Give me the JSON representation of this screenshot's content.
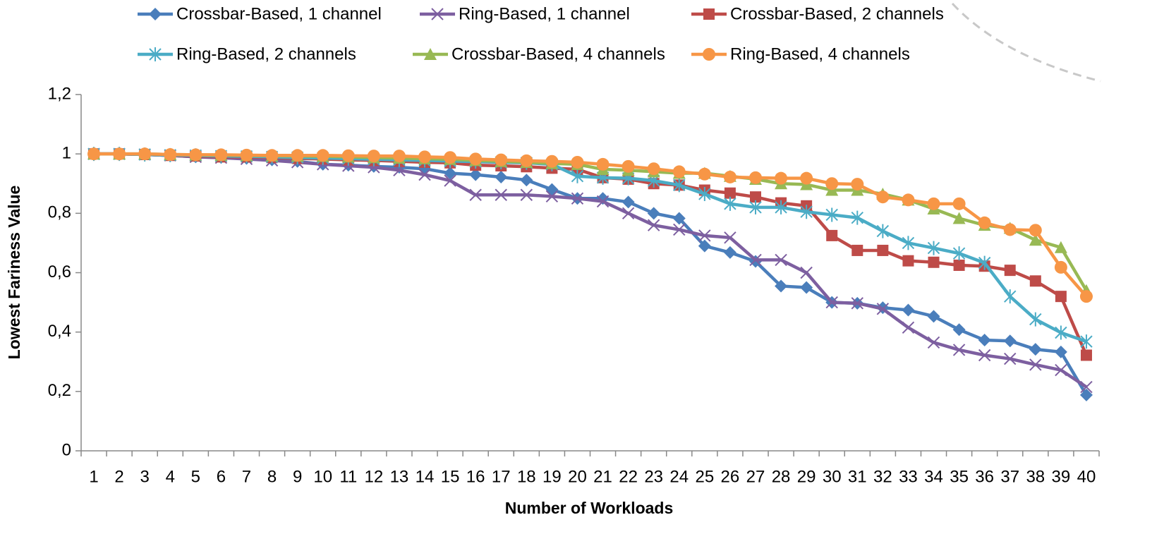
{
  "chart_data": {
    "type": "line",
    "x_label": "Number of Workloads",
    "y_label": "Lowest Fariness Value",
    "categories": [
      "1",
      "2",
      "3",
      "4",
      "5",
      "6",
      "7",
      "8",
      "9",
      "10",
      "11",
      "12",
      "13",
      "14",
      "15",
      "16",
      "17",
      "18",
      "19",
      "20",
      "21",
      "22",
      "23",
      "24",
      "25",
      "26",
      "27",
      "28",
      "29",
      "30",
      "31",
      "32",
      "33",
      "34",
      "35",
      "36",
      "37",
      "38",
      "39",
      "40"
    ],
    "ylim": [
      0,
      1.2
    ],
    "yticks": [
      0,
      {
        "value": 0.2,
        "label": "0,2"
      },
      {
        "value": 0.4,
        "label": "0,4"
      },
      {
        "value": 0.6,
        "label": "0,6"
      },
      {
        "value": 0.8,
        "label": "0,8"
      },
      1,
      {
        "value": 1.2,
        "label": "1,2"
      }
    ],
    "grid": false,
    "legend": "top",
    "series": [
      {
        "name": "Crossbar-Based, 1 channel",
        "color": "#4a7ebb",
        "marker": "diamond",
        "values": [
          1,
          1,
          0.998,
          0.995,
          0.99,
          0.988,
          0.985,
          0.98,
          0.975,
          0.965,
          0.962,
          0.958,
          0.955,
          0.95,
          0.935,
          0.93,
          0.922,
          0.912,
          0.88,
          0.85,
          0.85,
          0.838,
          0.8,
          0.783,
          0.69,
          0.668,
          0.638,
          0.555,
          0.55,
          0.5,
          0.497,
          0.482,
          0.474,
          0.453,
          0.408,
          0.373,
          0.37,
          0.342,
          0.333,
          0.188
        ]
      },
      {
        "name": "Ring-Based, 1 channel",
        "color": "#7d5fa0",
        "marker": "x",
        "values": [
          1,
          1,
          0.998,
          0.995,
          0.99,
          0.987,
          0.983,
          0.978,
          0.972,
          0.965,
          0.96,
          0.955,
          0.945,
          0.93,
          0.91,
          0.862,
          0.862,
          0.862,
          0.857,
          0.85,
          0.84,
          0.8,
          0.76,
          0.745,
          0.725,
          0.718,
          0.643,
          0.643,
          0.6,
          0.5,
          0.497,
          0.478,
          0.415,
          0.365,
          0.34,
          0.322,
          0.31,
          0.29,
          0.272,
          0.215
        ]
      },
      {
        "name": "Crossbar-Based, 2 channels",
        "color": "#be4b48",
        "marker": "square",
        "values": [
          1,
          1,
          0.998,
          0.995,
          0.993,
          0.99,
          0.99,
          0.988,
          0.985,
          0.983,
          0.98,
          0.978,
          0.975,
          0.972,
          0.97,
          0.962,
          0.96,
          0.957,
          0.952,
          0.948,
          0.92,
          0.915,
          0.9,
          0.895,
          0.878,
          0.868,
          0.855,
          0.835,
          0.825,
          0.725,
          0.675,
          0.675,
          0.64,
          0.635,
          0.625,
          0.622,
          0.608,
          0.572,
          0.52,
          0.322
        ]
      },
      {
        "name": "Ring-Based, 2 channels",
        "color": "#4bacc6",
        "marker": "star",
        "values": [
          1,
          1,
          0.998,
          0.996,
          0.995,
          0.993,
          0.992,
          0.99,
          0.988,
          0.986,
          0.984,
          0.982,
          0.98,
          0.978,
          0.976,
          0.974,
          0.972,
          0.97,
          0.965,
          0.925,
          0.92,
          0.918,
          0.91,
          0.895,
          0.865,
          0.832,
          0.82,
          0.82,
          0.805,
          0.795,
          0.785,
          0.74,
          0.7,
          0.683,
          0.665,
          0.633,
          0.52,
          0.443,
          0.398,
          0.368
        ]
      },
      {
        "name": "Crossbar-Based, 4 channels",
        "color": "#98b954",
        "marker": "triangle",
        "values": [
          1,
          1,
          1,
          0.998,
          0.997,
          0.996,
          0.995,
          0.994,
          0.993,
          0.992,
          0.99,
          0.988,
          0.986,
          0.984,
          0.982,
          0.978,
          0.975,
          0.972,
          0.968,
          0.965,
          0.948,
          0.945,
          0.94,
          0.935,
          0.935,
          0.925,
          0.915,
          0.9,
          0.897,
          0.878,
          0.878,
          0.865,
          0.845,
          0.815,
          0.783,
          0.76,
          0.75,
          0.71,
          0.685,
          0.54
        ]
      },
      {
        "name": "Ring-Based, 4 channels",
        "color": "#f79646",
        "marker": "circle",
        "values": [
          1,
          1,
          1,
          0.998,
          0.997,
          0.997,
          0.996,
          0.995,
          0.995,
          0.995,
          0.994,
          0.993,
          0.993,
          0.99,
          0.988,
          0.983,
          0.98,
          0.977,
          0.975,
          0.972,
          0.965,
          0.958,
          0.95,
          0.94,
          0.932,
          0.922,
          0.92,
          0.918,
          0.918,
          0.9,
          0.898,
          0.855,
          0.845,
          0.832,
          0.832,
          0.768,
          0.745,
          0.743,
          0.618,
          0.52
        ]
      }
    ]
  }
}
